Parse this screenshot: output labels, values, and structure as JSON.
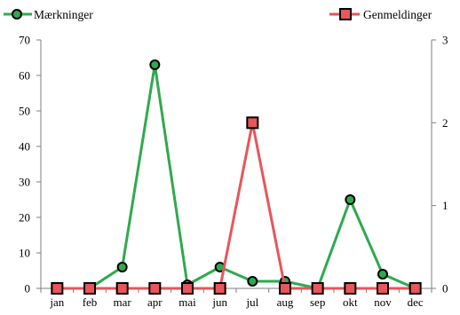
{
  "chart_data": {
    "type": "line",
    "categories": [
      "jan",
      "feb",
      "mar",
      "apr",
      "mai",
      "jun",
      "jul",
      "aug",
      "sep",
      "okt",
      "nov",
      "dec"
    ],
    "series": [
      {
        "name": "Mærkninger",
        "axis": "left",
        "color": "#2eaa4e",
        "marker": "circle",
        "marker_fill": "#2eaa4e",
        "values": [
          0,
          0,
          6,
          63,
          1,
          6,
          2,
          2,
          0,
          25,
          4,
          0
        ]
      },
      {
        "name": "Genmeldinger",
        "axis": "right",
        "color": "#e8555a",
        "marker": "square",
        "marker_fill": "#e8555a",
        "values": [
          0,
          0,
          0,
          0,
          0,
          0,
          2,
          0,
          0,
          0,
          0,
          0
        ]
      }
    ],
    "y_left": {
      "min": 0,
      "max": 70,
      "ticks": [
        0,
        10,
        20,
        30,
        40,
        50,
        60,
        70
      ]
    },
    "y_right": {
      "min": 0,
      "max": 3,
      "ticks": [
        0,
        1,
        2,
        3
      ]
    },
    "grid": false,
    "legend": [
      "top-left",
      "top-right"
    ]
  }
}
